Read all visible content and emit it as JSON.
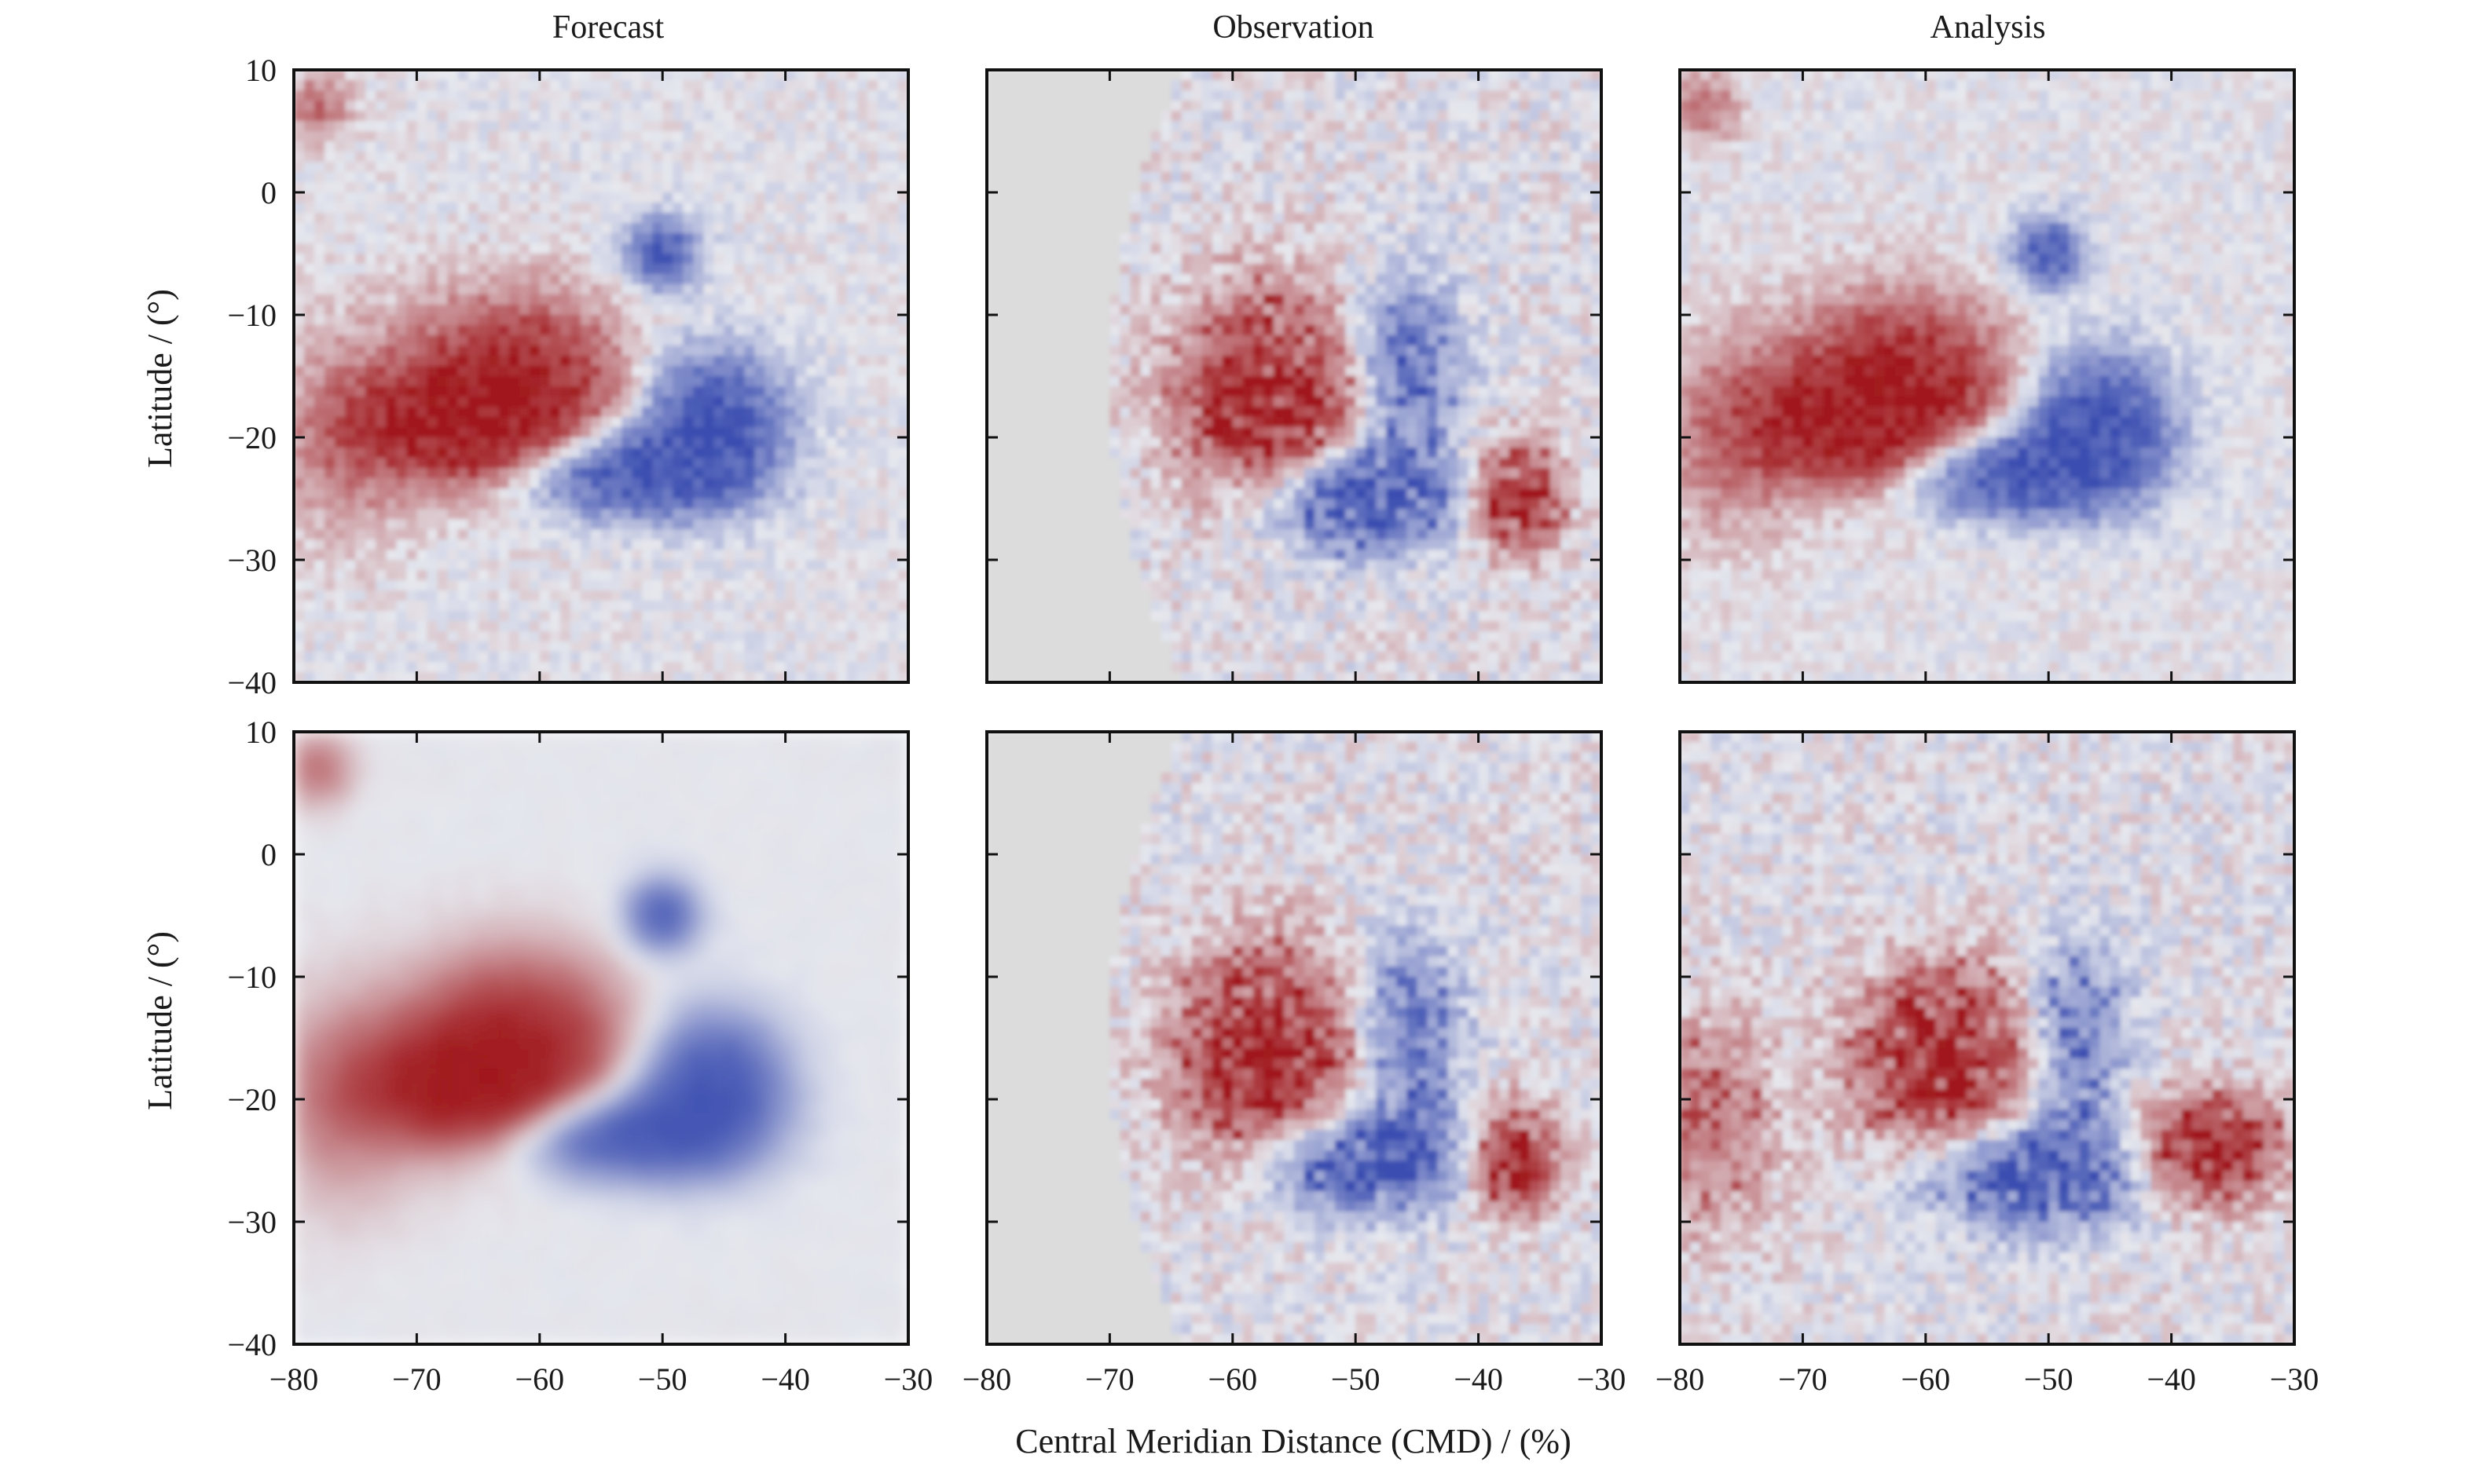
{
  "chart_data": {
    "type": "heatmap",
    "columns": [
      "Forecast",
      "Observation",
      "Analysis"
    ],
    "xlabel": "Central Meridian Distance (CMD) / (%)",
    "ylabel": "Latitude / (°)",
    "xlim": [
      -80,
      -30
    ],
    "ylim": [
      -40,
      10
    ],
    "xticks": [
      -80,
      -70,
      -60,
      -50,
      -40,
      -30
    ],
    "yticks": [
      -40,
      -30,
      -20,
      -10,
      0,
      10
    ],
    "xtick_labels": [
      "−80",
      "−70",
      "−60",
      "−50",
      "−40",
      "−30"
    ],
    "ytick_labels": [
      "−40",
      "−30",
      "−20",
      "−10",
      "0",
      "10"
    ],
    "colors": {
      "positive": "#a0181c",
      "negative": "#3a4db0",
      "neutral": "#dcdcdc"
    },
    "rows": [
      {
        "panels": [
          "forecast",
          "observation",
          "analysis"
        ]
      },
      {
        "panels": [
          "forecast_smooth",
          "observation",
          "analysis_noisy"
        ]
      }
    ],
    "features": {
      "forecast": [
        {
          "x": -62,
          "y": -16,
          "value": 1.0,
          "sx": 6,
          "sy": 5
        },
        {
          "x": -67,
          "y": -19,
          "value": 0.9,
          "sx": 5,
          "sy": 3
        },
        {
          "x": -46,
          "y": -19,
          "value": -1.0,
          "sx": 4,
          "sy": 4
        },
        {
          "x": -54,
          "y": -23,
          "value": -0.9,
          "sx": 6,
          "sy": 2.5
        },
        {
          "x": -50,
          "y": -5,
          "value": -0.8,
          "sx": 2,
          "sy": 2
        },
        {
          "x": -76,
          "y": -20,
          "value": 0.35,
          "sx": 4,
          "sy": 6
        },
        {
          "x": -78,
          "y": 7,
          "value": 0.4,
          "sx": 2,
          "sy": 2
        }
      ],
      "observation": [
        {
          "x": -57,
          "y": -17,
          "value": 1.0,
          "sx": 5,
          "sy": 6
        },
        {
          "x": -37,
          "y": -25,
          "value": 0.95,
          "sx": 2.5,
          "sy": 3
        },
        {
          "x": -50,
          "y": -25,
          "value": -0.9,
          "sx": 6,
          "sy": 3
        },
        {
          "x": -46,
          "y": -14,
          "value": -0.6,
          "sx": 3,
          "sy": 5
        }
      ],
      "analysis_noisy": [
        {
          "x": -58,
          "y": -17,
          "value": 1.0,
          "sx": 5,
          "sy": 5
        },
        {
          "x": -37,
          "y": -24,
          "value": 0.95,
          "sx": 4,
          "sy": 3
        },
        {
          "x": -51,
          "y": -26,
          "value": -0.9,
          "sx": 6,
          "sy": 3
        },
        {
          "x": -48,
          "y": -15,
          "value": -0.6,
          "sx": 3,
          "sy": 5
        },
        {
          "x": -78,
          "y": -22,
          "value": 0.45,
          "sx": 4,
          "sy": 6
        }
      ]
    }
  }
}
